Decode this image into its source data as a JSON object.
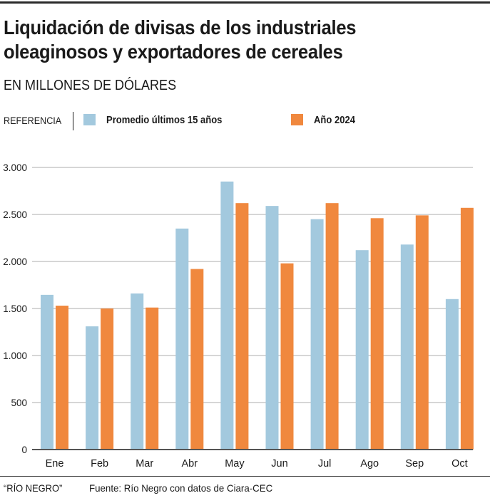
{
  "header": {
    "title_line1": "Liquidación de divisas de los industriales",
    "title_line2": "oleaginosos y exportadores de cereales",
    "subtitle": "EN MILLONES DE DÓLARES"
  },
  "legend": {
    "reference_label": "REFERENCIA",
    "items": [
      {
        "label": "Promedio últimos 15 años",
        "color": "#a3c9de"
      },
      {
        "label": "Año 2024",
        "color": "#f0883e"
      }
    ]
  },
  "chart_data": {
    "type": "bar",
    "title": "Liquidación de divisas de los industriales oleaginosos y exportadores de cereales",
    "subtitle": "EN MILLONES DE DÓLARES",
    "xlabel": "",
    "ylabel": "",
    "categories": [
      "Ene",
      "Feb",
      "Mar",
      "Abr",
      "May",
      "Jun",
      "Jul",
      "Ago",
      "Sep",
      "Oct"
    ],
    "series": [
      {
        "name": "Promedio últimos 15 años",
        "color": "#a3c9de",
        "values": [
          1645,
          1310,
          1660,
          2350,
          2850,
          2590,
          2450,
          2120,
          2180,
          1600
        ]
      },
      {
        "name": "Año 2024",
        "color": "#f0883e",
        "values": [
          1530,
          1500,
          1510,
          1920,
          2620,
          1980,
          2620,
          2460,
          2490,
          2570
        ]
      }
    ],
    "ylim": [
      0,
      3000
    ],
    "yticks": [
      0,
      500,
      1000,
      1500,
      2000,
      2500,
      3000
    ],
    "ytick_labels": [
      "0",
      "500",
      "1.000",
      "1.500",
      "2.000",
      "2.500",
      "3.000"
    ],
    "grid": true,
    "legend_position": "top-left"
  },
  "footer": {
    "brand": "“RÍO NEGRO”",
    "source": "Fuente: Río Negro con datos de Ciara-CEC"
  }
}
